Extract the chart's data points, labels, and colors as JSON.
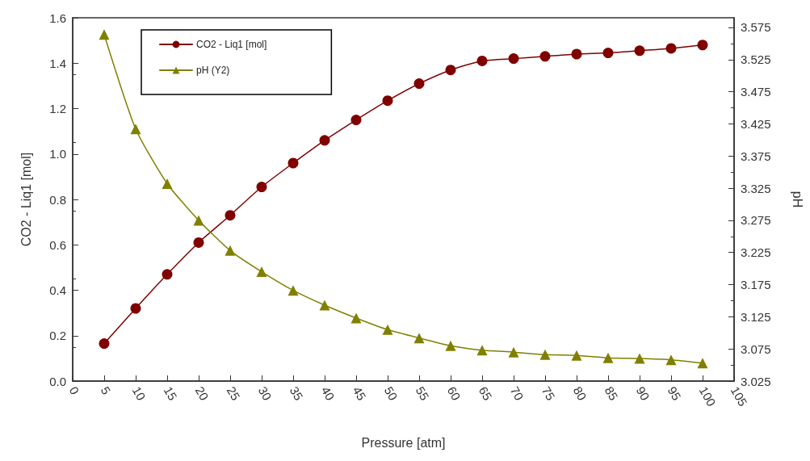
{
  "chart_data": {
    "type": "line",
    "xlabel": "Pressure [atm]",
    "ylabel": "CO2 - Liq1 [mol]",
    "y2label": "pH",
    "x": [
      5,
      10,
      15,
      20,
      25,
      30,
      35,
      40,
      45,
      50,
      55,
      60,
      65,
      70,
      75,
      80,
      85,
      90,
      95,
      100
    ],
    "series": [
      {
        "name": "CO2 - Liq1 [mol]",
        "color": "#800000",
        "marker": "circle",
        "values": [
          0.165,
          0.32,
          0.47,
          0.61,
          0.73,
          0.855,
          0.96,
          1.06,
          1.15,
          1.235,
          1.31,
          1.37,
          1.41,
          1.42,
          1.43,
          1.44,
          1.445,
          1.455,
          1.465,
          1.48
        ]
      },
      {
        "name": "pH (Y2)",
        "color": "#808000",
        "marker": "triangle",
        "axis": "y2",
        "values": [
          3.564,
          3.417,
          3.332,
          3.275,
          3.228,
          3.195,
          3.166,
          3.143,
          3.123,
          3.105,
          3.092,
          3.08,
          3.073,
          3.07,
          3.066,
          3.065,
          3.061,
          3.06,
          3.058,
          3.053
        ]
      }
    ],
    "xlim": [
      0,
      105
    ],
    "xticks": [
      0,
      5,
      10,
      15,
      20,
      25,
      30,
      35,
      40,
      45,
      50,
      55,
      60,
      65,
      70,
      75,
      80,
      85,
      90,
      95,
      100,
      105
    ],
    "ylim": [
      0,
      1.6
    ],
    "yticks": [
      {
        "value": 0,
        "label": "0.0"
      },
      {
        "value": 0.2,
        "label": "0.2"
      },
      {
        "value": 0.4,
        "label": "0.4"
      },
      {
        "value": 0.6,
        "label": "0.6"
      },
      {
        "value": 0.8,
        "label": "0.8"
      },
      {
        "value": 1,
        "label": "1.0"
      },
      {
        "value": 1.2,
        "label": "1.2"
      },
      {
        "value": 1.4,
        "label": "1.4"
      },
      {
        "value": 1.6,
        "label": "1.6"
      }
    ],
    "y2lim": [
      3.025,
      3.59
    ],
    "y2ticks": [
      3.025,
      3.075,
      3.125,
      3.175,
      3.225,
      3.275,
      3.325,
      3.375,
      3.425,
      3.475,
      3.525,
      3.575
    ],
    "grid": false,
    "legend": "top left",
    "line_style": "solid"
  }
}
